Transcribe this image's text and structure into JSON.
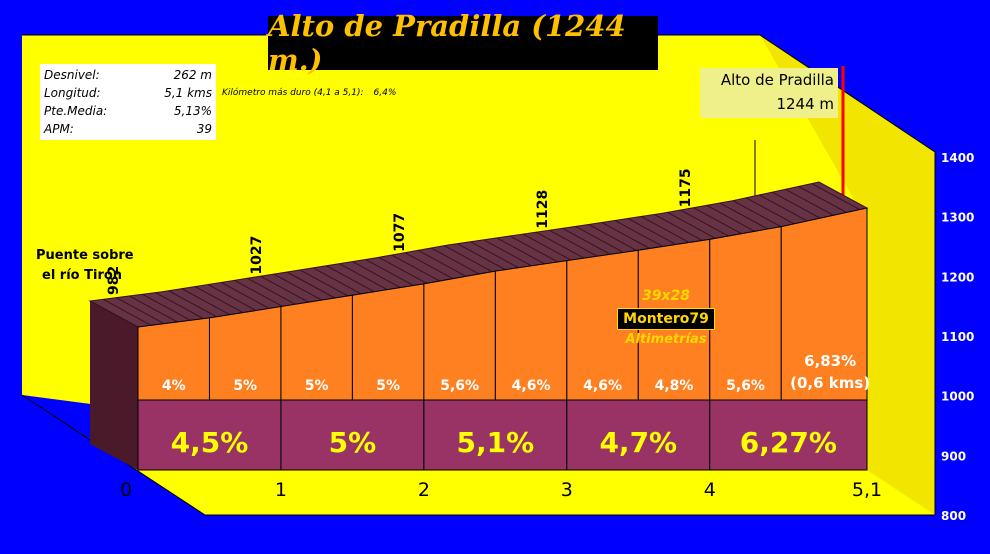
{
  "title": "Alto de Pradilla (1244 m.)",
  "stats": [
    {
      "label": "Desnivel:",
      "value": "262 m"
    },
    {
      "label": "Longitud:",
      "value": "5,1 kms"
    },
    {
      "label": "Pte.Media:",
      "value": "5,13%"
    },
    {
      "label": "APM:",
      "value": "39"
    }
  ],
  "hardest_km": {
    "label": "Kilómetro más duro (4,1 a 5,1):",
    "value": "6,4%"
  },
  "summit": {
    "line1": "Alto de Pradilla",
    "line2": "1244 m"
  },
  "start_label": {
    "line1": "Puente sobre",
    "line2": "el río Tirón"
  },
  "credit": {
    "line1": "39x28",
    "line2": "Montero79",
    "line3": "Altimetrías"
  },
  "colors": {
    "background": "#0000ff",
    "floor": "#ffff00",
    "segment_face": "#ff8020",
    "km_band": "#993366",
    "road": "#663344",
    "summit_marker": "#ff0000"
  },
  "chart_data": {
    "type": "area",
    "title": "Alto de Pradilla (1244 m.)",
    "xlabel": "",
    "ylabel": "",
    "x_ticks": [
      "0",
      "1",
      "2",
      "3",
      "4",
      "5,1"
    ],
    "x_tick_values": [
      0,
      1,
      2,
      3,
      4,
      5.1
    ],
    "y_ticks": [
      800,
      900,
      1000,
      1100,
      1200,
      1300,
      1400
    ],
    "ylim": [
      800,
      1400
    ],
    "xlim": [
      0,
      5.1
    ],
    "grid": false,
    "profile": {
      "x": [
        0,
        0.5,
        1,
        1.5,
        2,
        2.5,
        3,
        3.5,
        4,
        4.5,
        5.1
      ],
      "y": [
        982,
        1002,
        1027,
        1052,
        1077,
        1105,
        1128,
        1151,
        1175,
        1203,
        1244
      ]
    },
    "elevation_labels": [
      {
        "x": 0,
        "label": "982"
      },
      {
        "x": 1,
        "label": "1027"
      },
      {
        "x": 2,
        "label": "1077"
      },
      {
        "x": 3,
        "label": "1128"
      },
      {
        "x": 4,
        "label": "1175"
      }
    ],
    "half_km_gradients": [
      {
        "x0": 0,
        "x1": 0.5,
        "label": "4%"
      },
      {
        "x0": 0.5,
        "x1": 1,
        "label": "5%"
      },
      {
        "x0": 1,
        "x1": 1.5,
        "label": "5%"
      },
      {
        "x0": 1.5,
        "x1": 2,
        "label": "5%"
      },
      {
        "x0": 2,
        "x1": 2.5,
        "label": "5,6%"
      },
      {
        "x0": 2.5,
        "x1": 3,
        "label": "4,6%"
      },
      {
        "x0": 3,
        "x1": 3.5,
        "label": "4,6%"
      },
      {
        "x0": 3.5,
        "x1": 4,
        "label": "4,8%"
      },
      {
        "x0": 4,
        "x1": 4.5,
        "label": "5,6%"
      },
      {
        "x0": 4.5,
        "x1": 5.1,
        "label": "6,83%",
        "label2": "(0,6 kms)"
      }
    ],
    "km_gradients": [
      {
        "x0": 0,
        "x1": 1,
        "label": "4,5%"
      },
      {
        "x0": 1,
        "x1": 2,
        "label": "5%"
      },
      {
        "x0": 2,
        "x1": 3,
        "label": "5,1%"
      },
      {
        "x0": 3,
        "x1": 4,
        "label": "4,7%"
      },
      {
        "x0": 4,
        "x1": 5.1,
        "label": "6,27%"
      }
    ]
  }
}
